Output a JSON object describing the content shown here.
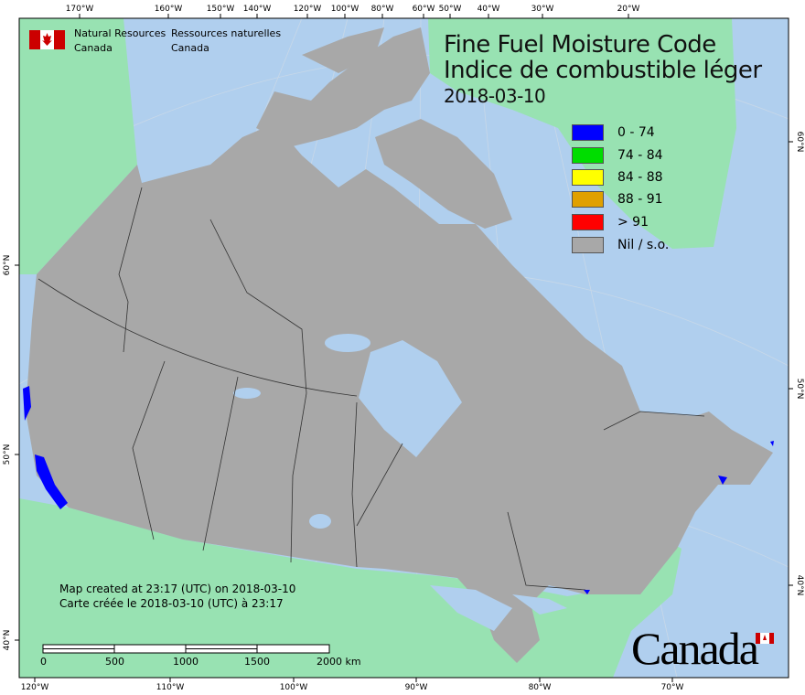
{
  "header": {
    "department_en": [
      "Natural Resources",
      "Canada"
    ],
    "department_fr": [
      "Ressources naturelles",
      "Canada"
    ]
  },
  "title": {
    "en": "Fine Fuel Moisture Code",
    "fr": "Indice de combustible léger",
    "date": "2018-03-10"
  },
  "legend": [
    {
      "label": "0 - 74",
      "color": "#0000ff"
    },
    {
      "label": "74 - 84",
      "color": "#00dd00"
    },
    {
      "label": "84 - 88",
      "color": "#ffff00"
    },
    {
      "label": "88 - 91",
      "color": "#e0a000"
    },
    {
      "label": "> 91",
      "color": "#ff0000"
    },
    {
      "label": "Nil / s.o.",
      "color": "#a8a8a8"
    }
  ],
  "notes": {
    "created_en": "Map created at 23:17 (UTC) on 2018-03-10",
    "created_fr": "Carte créée le 2018-03-10 (UTC) à 23:17"
  },
  "scale_bar": {
    "labels": [
      "0",
      "500",
      "1000",
      "1500",
      "2000 km"
    ]
  },
  "wordmark": "Canada",
  "axes": {
    "top": [
      "170°W",
      "160°W",
      "150°W",
      "140°W",
      "120°W",
      "100°W",
      "80°W",
      "60°W",
      "50°W",
      "40°W",
      "30°W",
      "20°W"
    ],
    "bottom": [
      "120°W",
      "110°W",
      "100°W",
      "90°W",
      "80°W",
      "70°W"
    ],
    "left": [
      "60°N",
      "50°N",
      "40°N"
    ],
    "right": [
      "60°N",
      "50°N",
      "40°N"
    ]
  },
  "colors": {
    "ocean": "#b0cfee",
    "foreign_land": "#98e2b2",
    "nil": "#a8a8a8"
  }
}
